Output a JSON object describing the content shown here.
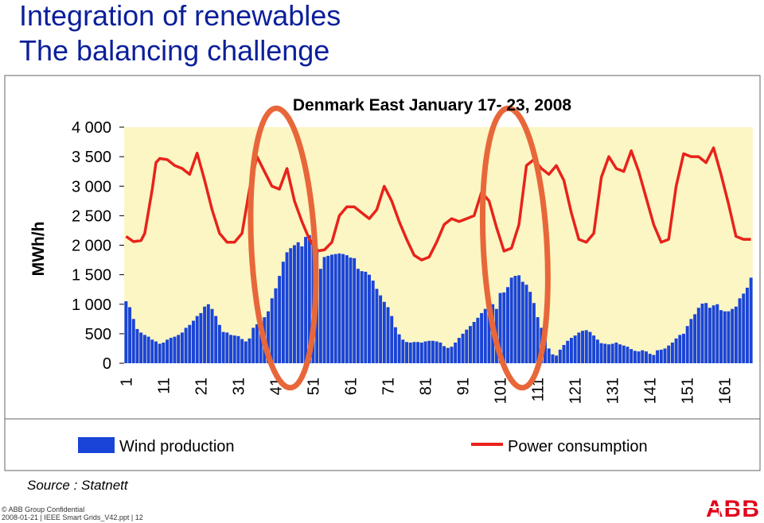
{
  "header": {
    "title": "Integration of renewables",
    "subtitle": "The balancing challenge"
  },
  "chart_data": {
    "type": "bar",
    "title": "Denmark East  January 17- 23, 2008",
    "ylabel": "MWh/h",
    "xlabel": "",
    "ylim": [
      0,
      4000
    ],
    "yticks": [
      0,
      500,
      1000,
      1500,
      2000,
      2500,
      3000,
      3500,
      4000
    ],
    "ytick_labels": [
      "0",
      "500",
      "1 000",
      "1 500",
      "2 000",
      "2 500",
      "3 000",
      "3 500",
      "4 000"
    ],
    "xticks": [
      1,
      11,
      21,
      31,
      41,
      51,
      61,
      71,
      81,
      91,
      101,
      111,
      121,
      131,
      141,
      151,
      161
    ],
    "xtick_labels": [
      "1",
      "11",
      "21",
      "31",
      "41",
      "51",
      "61",
      "71",
      "81",
      "91",
      "101",
      "111",
      "121",
      "131",
      "141",
      "151",
      "161"
    ],
    "xlim": [
      1,
      168
    ],
    "grid": false,
    "legend_position": "bottom",
    "background_color": "#fbf6c4",
    "series": [
      {
        "name": "Wind production",
        "kind": "bar",
        "color": "#1a44d8",
        "x": [
          1,
          2,
          3,
          4,
          5,
          6,
          7,
          8,
          9,
          10,
          11,
          12,
          13,
          14,
          15,
          16,
          17,
          18,
          19,
          20,
          21,
          22,
          23,
          24,
          25,
          26,
          27,
          28,
          29,
          30,
          31,
          32,
          33,
          34,
          35,
          36,
          37,
          38,
          39,
          40,
          41,
          42,
          43,
          44,
          45,
          46,
          47,
          48,
          49,
          50,
          51,
          52,
          53,
          54,
          55,
          56,
          57,
          58,
          59,
          60,
          61,
          62,
          63,
          64,
          65,
          66,
          67,
          68,
          69,
          70,
          71,
          72,
          73,
          74,
          75,
          76,
          77,
          78,
          79,
          80,
          81,
          82,
          83,
          84,
          85,
          86,
          87,
          88,
          89,
          90,
          91,
          92,
          93,
          94,
          95,
          96,
          97,
          98,
          99,
          100,
          101,
          102,
          103,
          104,
          105,
          106,
          107,
          108,
          109,
          110,
          111,
          112,
          113,
          114,
          115,
          116,
          117,
          118,
          119,
          120,
          121,
          122,
          123,
          124,
          125,
          126,
          127,
          128,
          129,
          130,
          131,
          132,
          133,
          134,
          135,
          136,
          137,
          138,
          139,
          140,
          141,
          142,
          143,
          144,
          145,
          146,
          147,
          148,
          149,
          150,
          151,
          152,
          153,
          154,
          155,
          156,
          157,
          158,
          159,
          160,
          161,
          162,
          163,
          164,
          165,
          166,
          167,
          168
        ],
        "values": [
          1050,
          950,
          750,
          580,
          520,
          480,
          450,
          400,
          370,
          330,
          350,
          400,
          430,
          450,
          480,
          520,
          600,
          650,
          720,
          800,
          850,
          960,
          1000,
          920,
          800,
          650,
          530,
          520,
          480,
          470,
          460,
          410,
          370,
          420,
          600,
          660,
          700,
          780,
          880,
          1100,
          1270,
          1480,
          1720,
          1880,
          1950,
          2000,
          2050,
          1980,
          2140,
          2170,
          2180,
          1940,
          1600,
          1800,
          1820,
          1840,
          1850,
          1860,
          1850,
          1830,
          1790,
          1780,
          1600,
          1560,
          1550,
          1500,
          1400,
          1260,
          1150,
          1040,
          950,
          800,
          610,
          490,
          400,
          360,
          350,
          360,
          360,
          350,
          370,
          380,
          380,
          370,
          350,
          290,
          260,
          280,
          350,
          430,
          500,
          570,
          630,
          700,
          770,
          850,
          920,
          970,
          1000,
          920,
          1190,
          1200,
          1290,
          1450,
          1480,
          1490,
          1380,
          1330,
          1210,
          1020,
          780,
          600,
          430,
          250,
          150,
          130,
          230,
          310,
          380,
          430,
          470,
          520,
          550,
          560,
          530,
          470,
          400,
          340,
          330,
          320,
          330,
          350,
          320,
          300,
          280,
          240,
          210,
          200,
          220,
          200,
          160,
          140,
          220,
          230,
          250,
          300,
          350,
          420,
          480,
          500,
          630,
          750,
          830,
          940,
          1010,
          1020,
          940,
          980,
          1000,
          900,
          880,
          880,
          920,
          960,
          1100,
          1180,
          1280,
          1450
        ]
      },
      {
        "name": "Power consumption",
        "kind": "line",
        "color": "#e8231a",
        "x": [
          1,
          3,
          5,
          6,
          8,
          9,
          10,
          12,
          14,
          16,
          18,
          20,
          22,
          24,
          26,
          28,
          30,
          32,
          34,
          36,
          38,
          40,
          42,
          44,
          46,
          48,
          50,
          52,
          54,
          56,
          58,
          60,
          62,
          64,
          66,
          68,
          70,
          72,
          74,
          76,
          78,
          80,
          82,
          84,
          86,
          88,
          90,
          92,
          94,
          96,
          98,
          100,
          102,
          104,
          106,
          108,
          110,
          112,
          114,
          116,
          118,
          120,
          122,
          124,
          126,
          128,
          130,
          132,
          134,
          136,
          138,
          140,
          142,
          144,
          146,
          148,
          150,
          152,
          154,
          156,
          158,
          160,
          162,
          164,
          166,
          168
        ],
        "values": [
          2150,
          2060,
          2080,
          2200,
          2950,
          3400,
          3470,
          3450,
          3350,
          3300,
          3200,
          3560,
          3100,
          2600,
          2200,
          2050,
          2050,
          2200,
          2950,
          3500,
          3250,
          3000,
          2950,
          3300,
          2750,
          2400,
          2100,
          1900,
          1920,
          2050,
          2500,
          2650,
          2650,
          2550,
          2450,
          2600,
          3000,
          2750,
          2400,
          2100,
          1830,
          1750,
          1800,
          2050,
          2350,
          2450,
          2400,
          2450,
          2500,
          2900,
          2750,
          2300,
          1900,
          1950,
          2350,
          3350,
          3450,
          3300,
          3200,
          3350,
          3100,
          2550,
          2100,
          2050,
          2200,
          3150,
          3500,
          3300,
          3250,
          3600,
          3250,
          2800,
          2350,
          2050,
          2100,
          3000,
          3550,
          3500,
          3500,
          3400,
          3650,
          3200,
          2700,
          2150,
          2100,
          2100
        ]
      }
    ],
    "annotations": [
      {
        "type": "ellipse",
        "color": "#e8673a",
        "x_center": 43,
        "y_center": 2100
      },
      {
        "type": "ellipse",
        "color": "#e8673a",
        "x_center": 105,
        "y_center": 2100
      }
    ]
  },
  "source": "Source : Statnett",
  "footer": {
    "line1": "© ABB Group Confidential",
    "line2": "2008-01-21 | IEEE Smart Grids_V42.ppt | 12"
  },
  "logo": {
    "text": "ABB",
    "color": "#e2001a"
  }
}
